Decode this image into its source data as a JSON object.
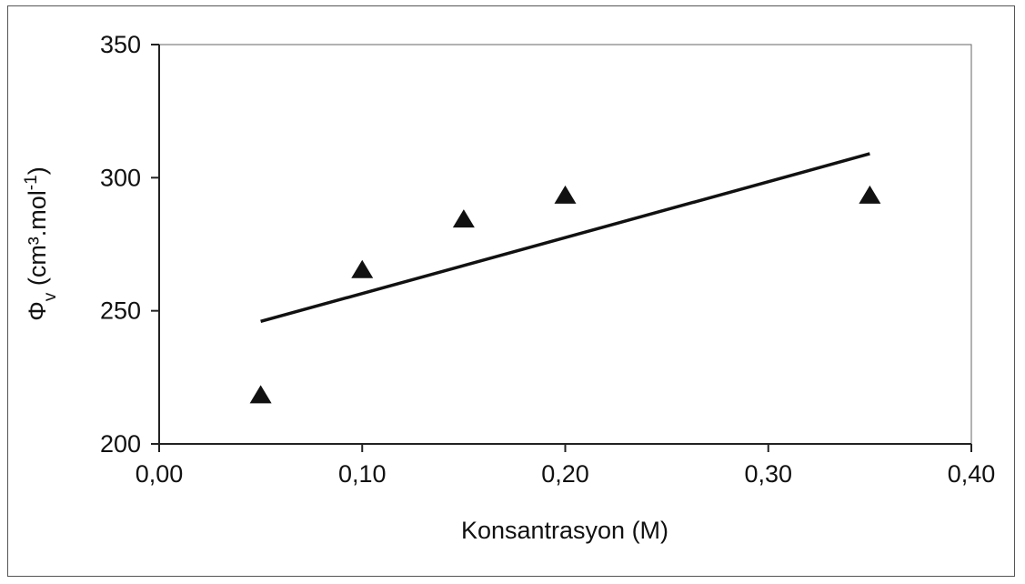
{
  "chart_data": {
    "type": "scatter",
    "xlabel": "Konsantrasyon (M)",
    "ylabel": {
      "prefix": "Φ",
      "sub": "v",
      "unit_open": " (cm³.mol",
      "sup": "-1",
      "unit_close": ")"
    },
    "xlim": [
      0,
      0.4
    ],
    "ylim": [
      200,
      350
    ],
    "x_ticks": [
      {
        "value": 0.0,
        "label": "0,00"
      },
      {
        "value": 0.1,
        "label": "0,10"
      },
      {
        "value": 0.2,
        "label": "0,20"
      },
      {
        "value": 0.3,
        "label": "0,30"
      },
      {
        "value": 0.4,
        "label": "0,40"
      }
    ],
    "y_ticks": [
      {
        "value": 200,
        "label": "200"
      },
      {
        "value": 250,
        "label": "250"
      },
      {
        "value": 300,
        "label": "300"
      },
      {
        "value": 350,
        "label": "350"
      }
    ],
    "grid": false,
    "series": [
      {
        "marker": "triangle",
        "color": "#111111",
        "points": [
          {
            "x": 0.05,
            "y": 218
          },
          {
            "x": 0.1,
            "y": 265
          },
          {
            "x": 0.15,
            "y": 284
          },
          {
            "x": 0.2,
            "y": 293
          },
          {
            "x": 0.35,
            "y": 293
          }
        ]
      }
    ],
    "trendline": {
      "color": "#111111",
      "points": [
        {
          "x": 0.05,
          "y": 246
        },
        {
          "x": 0.35,
          "y": 309
        }
      ]
    }
  }
}
